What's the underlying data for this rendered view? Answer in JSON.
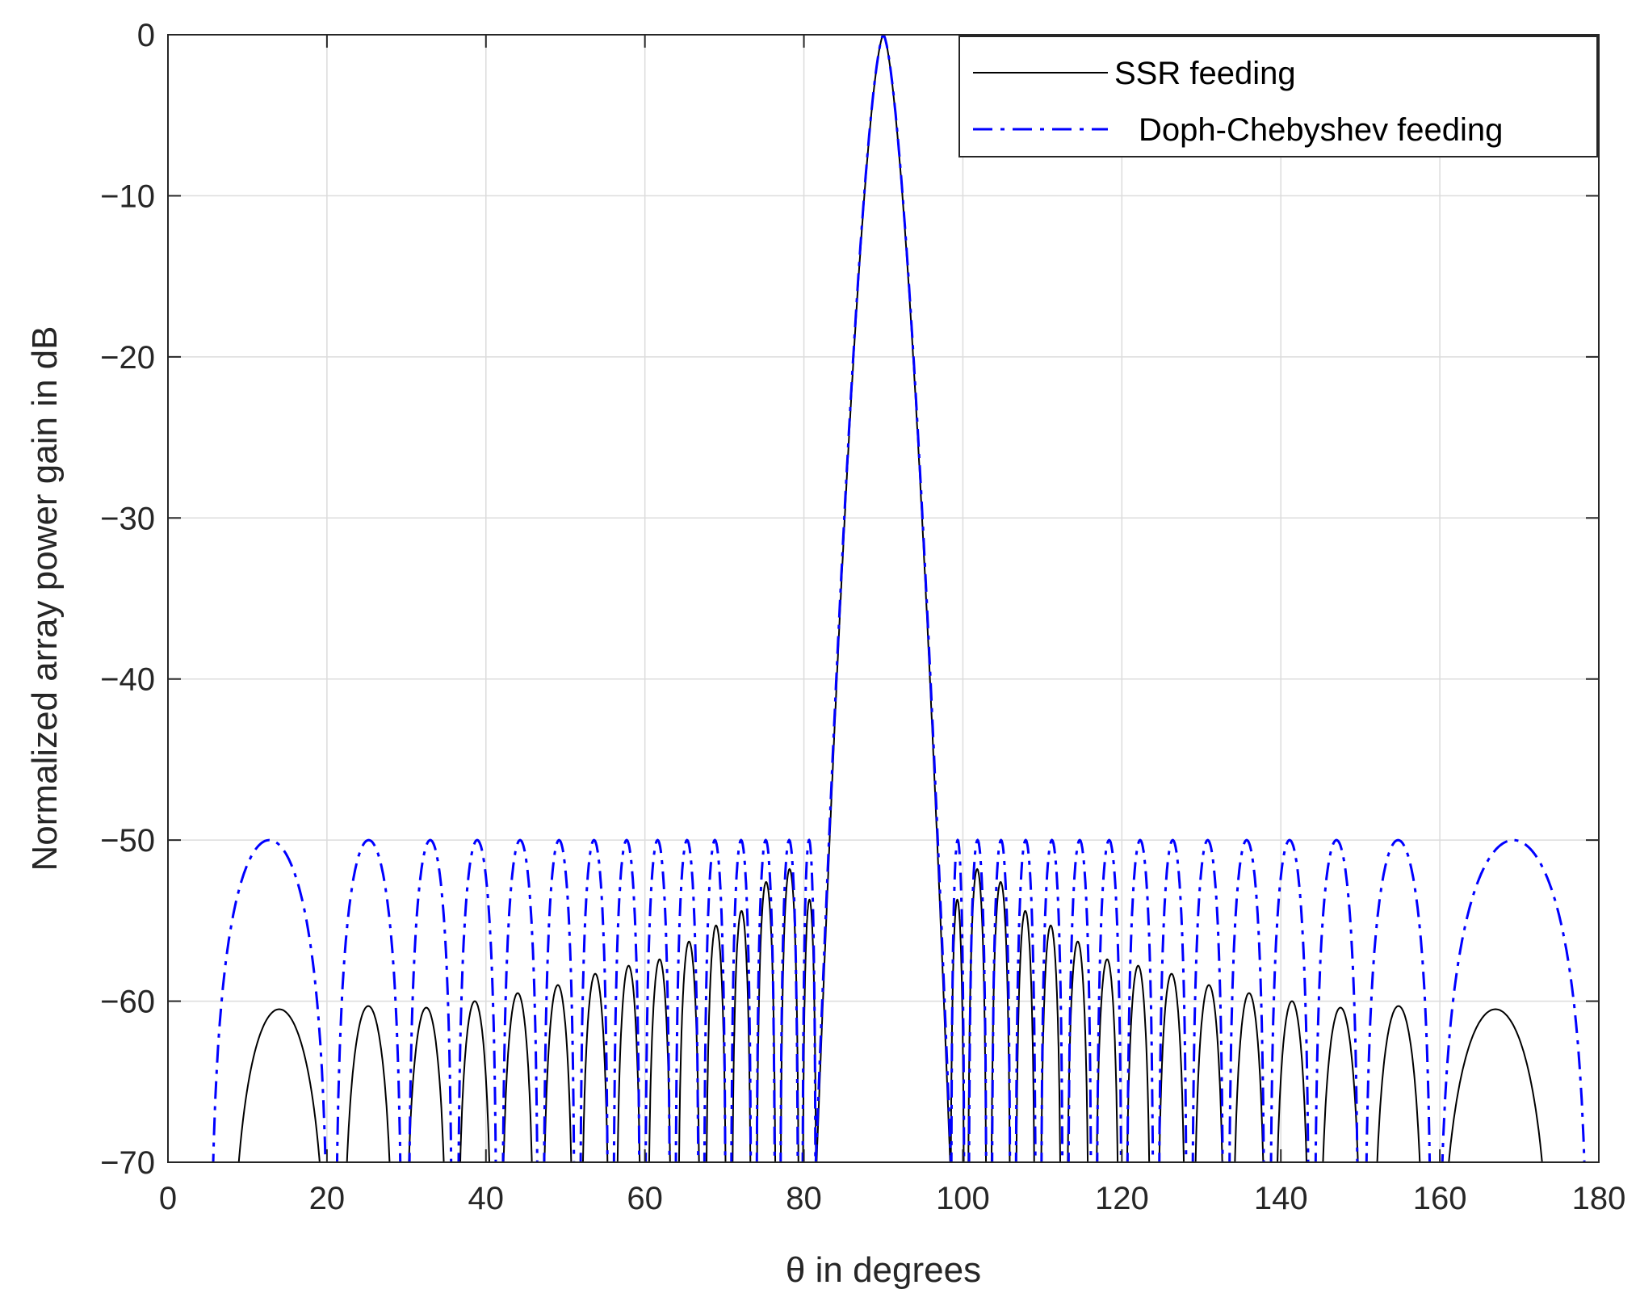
{
  "chart_data": {
    "type": "line",
    "title": "",
    "xlabel": "θ in degrees",
    "ylabel": "Normalized array power gain in dB",
    "xlim": [
      0,
      180
    ],
    "ylim": [
      -70,
      0
    ],
    "x_ticks": [
      "0",
      "20",
      "40",
      "60",
      "80",
      "100",
      "120",
      "140",
      "160",
      "180"
    ],
    "y_ticks": [
      "0",
      "−10",
      "−20",
      "−30",
      "−40",
      "−50",
      "−60",
      "−70"
    ],
    "grid": true,
    "legend_position": "top-right",
    "series": [
      {
        "name": "SSR feeding",
        "color": "#000000",
        "line_style": "solid",
        "main_lobe": {
          "center": 90,
          "width_at_minus70": 16.8
        },
        "sidelobes": [
          {
            "lo": 7.5,
            "hi": 20.5,
            "peak": -60.5
          },
          {
            "lo": 21.8,
            "hi": 28.6,
            "peak": -60.3
          },
          {
            "lo": 29.7,
            "hi": 35.3,
            "peak": -60.4
          },
          {
            "lo": 36.3,
            "hi": 40.9,
            "peak": -60.0
          },
          {
            "lo": 41.8,
            "hi": 46.2,
            "peak": -59.5
          },
          {
            "lo": 47.0,
            "hi": 51.1,
            "peak": -59.0
          },
          {
            "lo": 51.9,
            "hi": 55.6,
            "peak": -58.3
          },
          {
            "lo": 56.3,
            "hi": 59.6,
            "peak": -57.8
          },
          {
            "lo": 60.3,
            "hi": 63.4,
            "peak": -57.4
          },
          {
            "lo": 64.1,
            "hi": 67.0,
            "peak": -56.3
          },
          {
            "lo": 67.6,
            "hi": 70.3,
            "peak": -55.3
          },
          {
            "lo": 70.9,
            "hi": 73.4,
            "peak": -54.4
          },
          {
            "lo": 74.0,
            "hi": 76.5,
            "peak": -52.6
          },
          {
            "lo": 77.0,
            "hi": 79.4,
            "peak": -51.8
          },
          {
            "lo": 79.8,
            "hi": 81.6,
            "peak": -53.7
          },
          {
            "lo": 98.4,
            "hi": 100.2,
            "peak": -53.7
          },
          {
            "lo": 100.6,
            "hi": 103.0,
            "peak": -51.8
          },
          {
            "lo": 103.5,
            "hi": 106.0,
            "peak": -52.6
          },
          {
            "lo": 106.6,
            "hi": 109.1,
            "peak": -54.4
          },
          {
            "lo": 109.7,
            "hi": 112.4,
            "peak": -55.3
          },
          {
            "lo": 113.0,
            "hi": 115.9,
            "peak": -56.3
          },
          {
            "lo": 116.6,
            "hi": 119.7,
            "peak": -57.4
          },
          {
            "lo": 120.4,
            "hi": 123.7,
            "peak": -57.8
          },
          {
            "lo": 124.4,
            "hi": 128.1,
            "peak": -58.3
          },
          {
            "lo": 128.9,
            "hi": 133.0,
            "peak": -59.0
          },
          {
            "lo": 133.8,
            "hi": 138.2,
            "peak": -59.5
          },
          {
            "lo": 139.1,
            "hi": 143.7,
            "peak": -60.0
          },
          {
            "lo": 144.7,
            "hi": 150.3,
            "peak": -60.4
          },
          {
            "lo": 151.4,
            "hi": 158.2,
            "peak": -60.3
          },
          {
            "lo": 159.5,
            "hi": 174.5,
            "peak": -60.5
          }
        ]
      },
      {
        "name": "Doph-Chebyshev feeding",
        "color": "#0000ff",
        "line_style": "dash-dot",
        "main_lobe": {
          "center": 90,
          "width_at_minus70": 17.0
        },
        "sidelobes": [
          {
            "lo": 5.2,
            "hi": 20.3,
            "peak": -50
          },
          {
            "lo": 21.0,
            "hi": 29.5,
            "peak": -50
          },
          {
            "lo": 30.2,
            "hi": 35.8,
            "peak": -50
          },
          {
            "lo": 36.4,
            "hi": 41.4,
            "peak": -50
          },
          {
            "lo": 42.0,
            "hi": 46.6,
            "peak": -50
          },
          {
            "lo": 47.2,
            "hi": 51.2,
            "peak": -50
          },
          {
            "lo": 51.8,
            "hi": 55.4,
            "peak": -50
          },
          {
            "lo": 56.0,
            "hi": 59.4,
            "peak": -50
          },
          {
            "lo": 60.0,
            "hi": 63.2,
            "peak": -50
          },
          {
            "lo": 63.8,
            "hi": 66.8,
            "peak": -50
          },
          {
            "lo": 67.4,
            "hi": 70.2,
            "peak": -50
          },
          {
            "lo": 70.8,
            "hi": 73.4,
            "peak": -50
          },
          {
            "lo": 74.0,
            "hi": 76.4,
            "peak": -50
          },
          {
            "lo": 77.0,
            "hi": 79.3,
            "peak": -50
          },
          {
            "lo": 79.8,
            "hi": 81.5,
            "peak": -50
          },
          {
            "lo": 98.5,
            "hi": 100.2,
            "peak": -50
          },
          {
            "lo": 100.7,
            "hi": 103.0,
            "peak": -50
          },
          {
            "lo": 103.6,
            "hi": 106.0,
            "peak": -50
          },
          {
            "lo": 106.6,
            "hi": 109.2,
            "peak": -50
          },
          {
            "lo": 109.8,
            "hi": 112.6,
            "peak": -50
          },
          {
            "lo": 113.2,
            "hi": 116.2,
            "peak": -50
          },
          {
            "lo": 116.8,
            "hi": 120.0,
            "peak": -50
          },
          {
            "lo": 120.6,
            "hi": 124.0,
            "peak": -50
          },
          {
            "lo": 124.6,
            "hi": 128.2,
            "peak": -50
          },
          {
            "lo": 128.8,
            "hi": 132.8,
            "peak": -50
          },
          {
            "lo": 133.4,
            "hi": 138.0,
            "peak": -50
          },
          {
            "lo": 138.6,
            "hi": 143.6,
            "peak": -50
          },
          {
            "lo": 144.2,
            "hi": 149.8,
            "peak": -50
          },
          {
            "lo": 150.5,
            "hi": 159.0,
            "peak": -50
          },
          {
            "lo": 159.7,
            "hi": 178.8,
            "peak": -50
          }
        ]
      }
    ]
  }
}
